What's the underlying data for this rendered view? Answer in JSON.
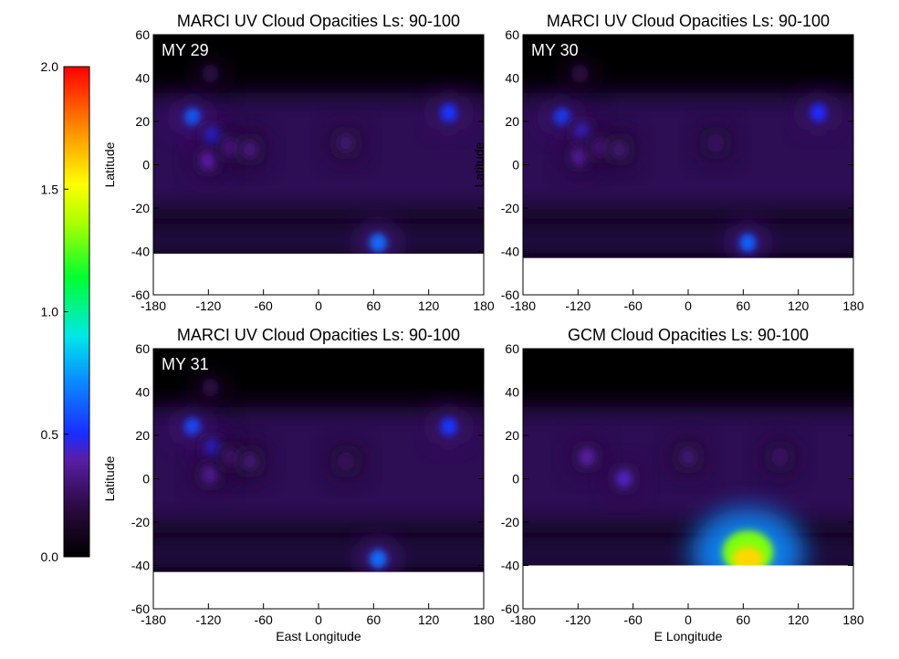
{
  "chart_data": [
    {
      "type": "heatmap",
      "title": "MARCI UV Cloud Opacities Ls: 90-100",
      "label": "MY 29",
      "xlabel": "",
      "ylabel": "Latitude",
      "xticks": [
        "-180",
        "-120",
        "-60",
        "0",
        "60",
        "120",
        "180"
      ],
      "yticks": [
        "60",
        "40",
        "20",
        "0",
        "-20",
        "-40",
        "-60"
      ],
      "xlim": [
        -180,
        180
      ],
      "ylim": [
        -60,
        60
      ],
      "data_limit_lat": -41,
      "features": [
        {
          "lon": -137,
          "lat": 22,
          "opacity": 0.62
        },
        {
          "lon": -115,
          "lat": 13,
          "opacity": 0.48
        },
        {
          "lon": -120,
          "lat": 2,
          "opacity": 0.4
        },
        {
          "lon": -95,
          "lat": 8,
          "opacity": 0.35
        },
        {
          "lon": -75,
          "lat": 7,
          "opacity": 0.3
        },
        {
          "lon": -118,
          "lat": 42,
          "opacity": 0.2
        },
        {
          "lon": 30,
          "lat": 10,
          "opacity": 0.28
        },
        {
          "lon": 142,
          "lat": 24,
          "opacity": 0.52
        },
        {
          "lon": 65,
          "lat": -36,
          "opacity": 0.65
        }
      ]
    },
    {
      "type": "heatmap",
      "title": "MARCI UV Cloud Opacities Ls: 90-100",
      "label": "MY 30",
      "xlabel": "",
      "ylabel": "Latitude",
      "xticks": [
        "-180",
        "-120",
        "-60",
        "0",
        "60",
        "120",
        "180"
      ],
      "yticks": [
        "60",
        "40",
        "20",
        "0",
        "-20",
        "-40",
        "-60"
      ],
      "xlim": [
        -180,
        180
      ],
      "ylim": [
        -60,
        60
      ],
      "data_limit_lat": -43,
      "features": [
        {
          "lon": -137,
          "lat": 22,
          "opacity": 0.55
        },
        {
          "lon": -115,
          "lat": 15,
          "opacity": 0.45
        },
        {
          "lon": -118,
          "lat": 4,
          "opacity": 0.38
        },
        {
          "lon": -95,
          "lat": 8,
          "opacity": 0.33
        },
        {
          "lon": -75,
          "lat": 7,
          "opacity": 0.28
        },
        {
          "lon": -118,
          "lat": 42,
          "opacity": 0.2
        },
        {
          "lon": 30,
          "lat": 10,
          "opacity": 0.26
        },
        {
          "lon": 142,
          "lat": 24,
          "opacity": 0.5
        },
        {
          "lon": 65,
          "lat": -36,
          "opacity": 0.62
        }
      ]
    },
    {
      "type": "heatmap",
      "title": "MARCI UV Cloud Opacities Ls: 90-100",
      "label": "MY 31",
      "xlabel": "East Longitude",
      "ylabel": "Latitude",
      "xticks": [
        "-180",
        "-120",
        "-60",
        "0",
        "60",
        "120",
        "180"
      ],
      "yticks": [
        "60",
        "40",
        "20",
        "0",
        "-20",
        "-40",
        "-60"
      ],
      "xlim": [
        -180,
        180
      ],
      "ylim": [
        -60,
        60
      ],
      "data_limit_lat": -43,
      "features": [
        {
          "lon": -137,
          "lat": 24,
          "opacity": 0.58
        },
        {
          "lon": -115,
          "lat": 14,
          "opacity": 0.47
        },
        {
          "lon": -118,
          "lat": 2,
          "opacity": 0.36
        },
        {
          "lon": -95,
          "lat": 10,
          "opacity": 0.3
        },
        {
          "lon": -75,
          "lat": 8,
          "opacity": 0.28
        },
        {
          "lon": -118,
          "lat": 42,
          "opacity": 0.2
        },
        {
          "lon": 30,
          "lat": 8,
          "opacity": 0.25
        },
        {
          "lon": 142,
          "lat": 24,
          "opacity": 0.52
        },
        {
          "lon": 65,
          "lat": -37,
          "opacity": 0.65
        }
      ]
    },
    {
      "type": "heatmap",
      "title": "GCM Cloud Opacities Ls: 90-100",
      "label": "",
      "xlabel": "E Longitude",
      "ylabel": "",
      "xticks": [
        "-180",
        "-120",
        "-60",
        "0",
        "60",
        "120",
        "180"
      ],
      "yticks": [
        "60",
        "40",
        "20",
        "0",
        "-20",
        "-40",
        "-60"
      ],
      "xlim": [
        -180,
        180
      ],
      "ylim": [
        -60,
        60
      ],
      "data_limit_lat": -40,
      "features": [
        {
          "lon": -110,
          "lat": 10,
          "opacity": 0.38
        },
        {
          "lon": -70,
          "lat": 0,
          "opacity": 0.42
        },
        {
          "lon": 0,
          "lat": 10,
          "opacity": 0.28
        },
        {
          "lon": 100,
          "lat": 10,
          "opacity": 0.27
        },
        {
          "lon": 65,
          "lat": -34,
          "opacity": 1.3
        }
      ]
    }
  ],
  "colorbar": {
    "ticks": [
      "0.0",
      "0.5",
      "1.0",
      "1.5",
      "2.0"
    ],
    "range": [
      0,
      2
    ]
  }
}
